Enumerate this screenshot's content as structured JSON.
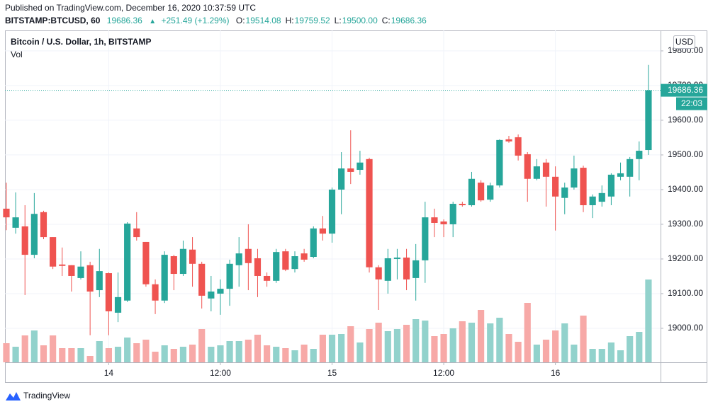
{
  "header": {
    "published": "Published on TradingView.com, December 16, 2020 10:37:59 UTC",
    "symbol": "BITSTAMP:BTCUSD, 60",
    "last": "19686.36",
    "arrow": "▲",
    "change": "+251.49 (+1.29%)",
    "ohlc": [
      {
        "label": "O:",
        "value": "19514.08"
      },
      {
        "label": "H:",
        "value": "19759.52"
      },
      {
        "label": "L:",
        "value": "19500.00"
      },
      {
        "label": "C:",
        "value": "19686.36"
      }
    ]
  },
  "chart_data": {
    "type": "candlestick",
    "title": "Bitcoin / U.S. Dollar, 1h, BITSTAMP",
    "volume_label": "Vol",
    "currency": "USD",
    "up_color": "#26a69a",
    "down_color": "#ef5350",
    "volume_up_color": "#92d2cc",
    "volume_down_color": "#f7a9a7",
    "grid": true,
    "categories": [
      null,
      null,
      null,
      null,
      null,
      null,
      null,
      null,
      null,
      null,
      null,
      null,
      null,
      null,
      null,
      null,
      null,
      null,
      null,
      null,
      null,
      null,
      null,
      null,
      null,
      null,
      null,
      null,
      null,
      null,
      null,
      null,
      null,
      null,
      null,
      null,
      null,
      null,
      null,
      null,
      null,
      null,
      null,
      null,
      null,
      null,
      null,
      null,
      null,
      null,
      null,
      null,
      null,
      null,
      null,
      null,
      null,
      null,
      null,
      null,
      null,
      null,
      null,
      null,
      null,
      null,
      null,
      null,
      null,
      null
    ],
    "open": [
      19345,
      19290,
      19294,
      19212,
      19335,
      19263,
      19184,
      19182,
      19145,
      19182,
      19110,
      19159,
      19045,
      19080,
      19288,
      19249,
      19127,
      19080,
      19208,
      19157,
      19227,
      19186,
      19086,
      19100,
      19114,
      19182,
      19229,
      19202,
      19151,
      19137,
      19222,
      19171,
      19216,
      19206,
      19288,
      19273,
      19400,
      19461,
      19457,
      19488,
      19176,
      19137,
      19200,
      19204,
      19145,
      19196,
      19320,
      19308,
      19300,
      19359,
      19355,
      19420,
      19371,
      19412,
      19545,
      19551,
      19502,
      19431,
      19478,
      19437,
      19376,
      19406,
      19463,
      19355,
      19365,
      19380,
      19437,
      19437,
      19488,
      19514.08
    ],
    "high": [
      19420,
      19392,
      19355,
      19390,
      19339,
      19263,
      19233,
      19182,
      19222,
      19192,
      19229,
      19161,
      19161,
      19306,
      19335,
      19249,
      19141,
      19222,
      19212,
      19253,
      19263,
      19192,
      19151,
      19141,
      19198,
      19263,
      19300,
      19229,
      19161,
      19229,
      19229,
      19222,
      19229,
      19294,
      19324,
      19406,
      19508,
      19571,
      19512,
      19492,
      19182,
      19229,
      19229,
      19229,
      19243,
      19365,
      19345,
      19314,
      19365,
      19365,
      19451,
      19427,
      19420,
      19545,
      19555,
      19559,
      19508,
      19488,
      19488,
      19467,
      19420,
      19498,
      19469,
      19386,
      19412,
      19447,
      19478,
      19494,
      19539,
      19759.52
    ],
    "low": [
      19283,
      19273,
      19096,
      19202,
      19257,
      19171,
      19151,
      19106,
      19141,
      18980,
      19090,
      18980,
      19018,
      19076,
      19253,
      19120,
      19041,
      19073,
      19110,
      19151,
      19120,
      19057,
      19049,
      19039,
      19065,
      19120,
      19110,
      19090,
      19120,
      19131,
      19165,
      19161,
      19192,
      19202,
      19253,
      19247,
      19329,
      19416,
      19443,
      19161,
      19053,
      19100,
      19141,
      19110,
      19080,
      19131,
      19263,
      19263,
      19263,
      19351,
      19351,
      19365,
      19365,
      19406,
      19535,
      19484,
      19365,
      19427,
      19351,
      19282,
      19329,
      19400,
      19335,
      19318,
      19351,
      19355,
      19427,
      19380,
      19427,
      19500
    ],
    "close": [
      19320,
      19320,
      19212,
      19330,
      19263,
      19178,
      19180,
      19151,
      19178,
      19106,
      19165,
      19049,
      19090,
      19302,
      19263,
      19127,
      19080,
      19212,
      19157,
      19229,
      19186,
      19094,
      19106,
      19114,
      19186,
      19216,
      19188,
      19151,
      19137,
      19220,
      19169,
      19208,
      19198,
      19288,
      19273,
      19400,
      19461,
      19451,
      19478,
      19176,
      19141,
      19202,
      19204,
      19141,
      19196,
      19320,
      19304,
      19300,
      19359,
      19355,
      19431,
      19369,
      19412,
      19543,
      19539,
      19498,
      19431,
      19467,
      19437,
      19380,
      19406,
      19461,
      19355,
      19380,
      19390,
      19443,
      19447,
      19488,
      19512,
      19686.36
    ],
    "volume": [
      27,
      22,
      38,
      45,
      24,
      38,
      20,
      20,
      20,
      9,
      30,
      20,
      22,
      35,
      27,
      32,
      15,
      24,
      19,
      22,
      25,
      47,
      22,
      24,
      30,
      30,
      32,
      39,
      24,
      22,
      20,
      17,
      25,
      19,
      39,
      39,
      40,
      51,
      28,
      47,
      56,
      44,
      47,
      53,
      61,
      59,
      37,
      40,
      48,
      58,
      56,
      74,
      55,
      63,
      40,
      29,
      84,
      25,
      32,
      45,
      55,
      25,
      66,
      19,
      19,
      28,
      17,
      37,
      43,
      117
    ],
    "volume_lim": [
      0,
      469
    ],
    "xlim": [
      -0.15,
      70.3
    ],
    "xticks": [
      {
        "value": 11,
        "label": "14"
      },
      {
        "value": 23,
        "label": "12:00"
      },
      {
        "value": 35,
        "label": "15"
      },
      {
        "value": 47,
        "label": "12:00"
      },
      {
        "value": 59,
        "label": "16"
      }
    ],
    "ylim": [
      18902,
      19859
    ],
    "yticks": [
      {
        "value": 19000,
        "label": "19000.00"
      },
      {
        "value": 19100,
        "label": "19100.00"
      },
      {
        "value": 19200,
        "label": "19200.00"
      },
      {
        "value": 19300,
        "label": "19300.00"
      },
      {
        "value": 19400,
        "label": "19400.00"
      },
      {
        "value": 19500,
        "label": "19500.00"
      },
      {
        "value": 19600,
        "label": "19600.00"
      },
      {
        "value": 19700,
        "label": "19700.00"
      },
      {
        "value": 19800,
        "label": "19800.00"
      }
    ],
    "last_price": {
      "value": 19686.36,
      "label": "19686.36"
    },
    "countdown": "22:03"
  },
  "footer": {
    "brand": "TradingView"
  }
}
